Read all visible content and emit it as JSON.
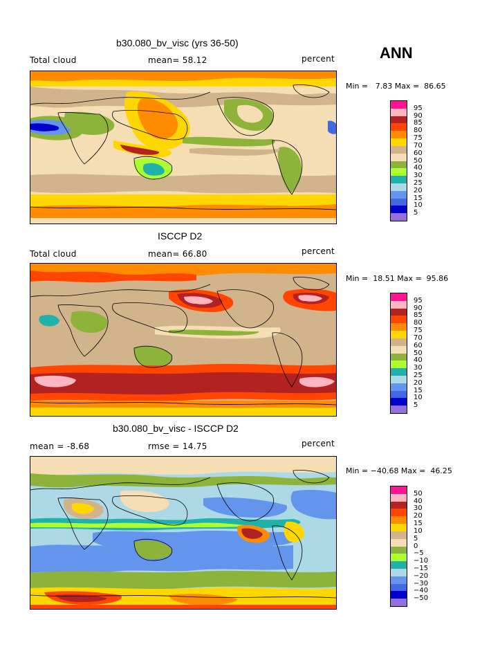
{
  "season": "ANN",
  "panels": [
    {
      "title": "b30.080_bv_visc (yrs 36-50)",
      "left_label": "Total cloud",
      "mid_label": "mean=  58.12",
      "right_label": "percent",
      "minmax": "Min =   7.83 Max =  86.65",
      "legend": {
        "labels": [
          "95",
          "90",
          "85",
          "80",
          "75",
          "70",
          "60",
          "50",
          "40",
          "30",
          "25",
          "20",
          "15",
          "10",
          "5"
        ],
        "colors": [
          "#ff1493",
          "#ffb6c1",
          "#b22222",
          "#ff4500",
          "#ff8c00",
          "#ffd700",
          "#d2b48c",
          "#f5deb3",
          "#8db33a",
          "#adff2f",
          "#20b2aa",
          "#add8e6",
          "#6495ed",
          "#4169e1",
          "#0000cd",
          "#9370db"
        ]
      }
    },
    {
      "title": "ISCCP D2",
      "left_label": "Total cloud",
      "mid_label": "mean=  66.80",
      "right_label": "percent",
      "minmax": "Min =  18.51 Max =  95.86",
      "legend": {
        "labels": [
          "95",
          "90",
          "85",
          "80",
          "75",
          "70",
          "60",
          "50",
          "40",
          "30",
          "25",
          "20",
          "15",
          "10",
          "5"
        ],
        "colors": [
          "#ff1493",
          "#ffb6c1",
          "#b22222",
          "#ff4500",
          "#ff8c00",
          "#ffd700",
          "#d2b48c",
          "#f5deb3",
          "#8db33a",
          "#adff2f",
          "#20b2aa",
          "#add8e6",
          "#6495ed",
          "#4169e1",
          "#0000cd",
          "#9370db"
        ]
      }
    },
    {
      "title": "b30.080_bv_visc - ISCCP D2",
      "left_label": "mean =  -8.68",
      "mid_label": "rmse =  14.75",
      "right_label": "percent",
      "minmax": "Min = −40.68 Max =  46.25",
      "legend": {
        "labels": [
          "50",
          "40",
          "30",
          "20",
          "15",
          "10",
          "5",
          "0",
          "−5",
          "−10",
          "−15",
          "−20",
          "−30",
          "−40",
          "−50"
        ],
        "colors": [
          "#ff1493",
          "#ffb6c1",
          "#b22222",
          "#ff4500",
          "#ff8c00",
          "#ffd700",
          "#d2b48c",
          "#f5deb3",
          "#8db33a",
          "#adff2f",
          "#20b2aa",
          "#add8e6",
          "#6495ed",
          "#4169e1",
          "#0000cd",
          "#9370db"
        ]
      }
    }
  ]
}
